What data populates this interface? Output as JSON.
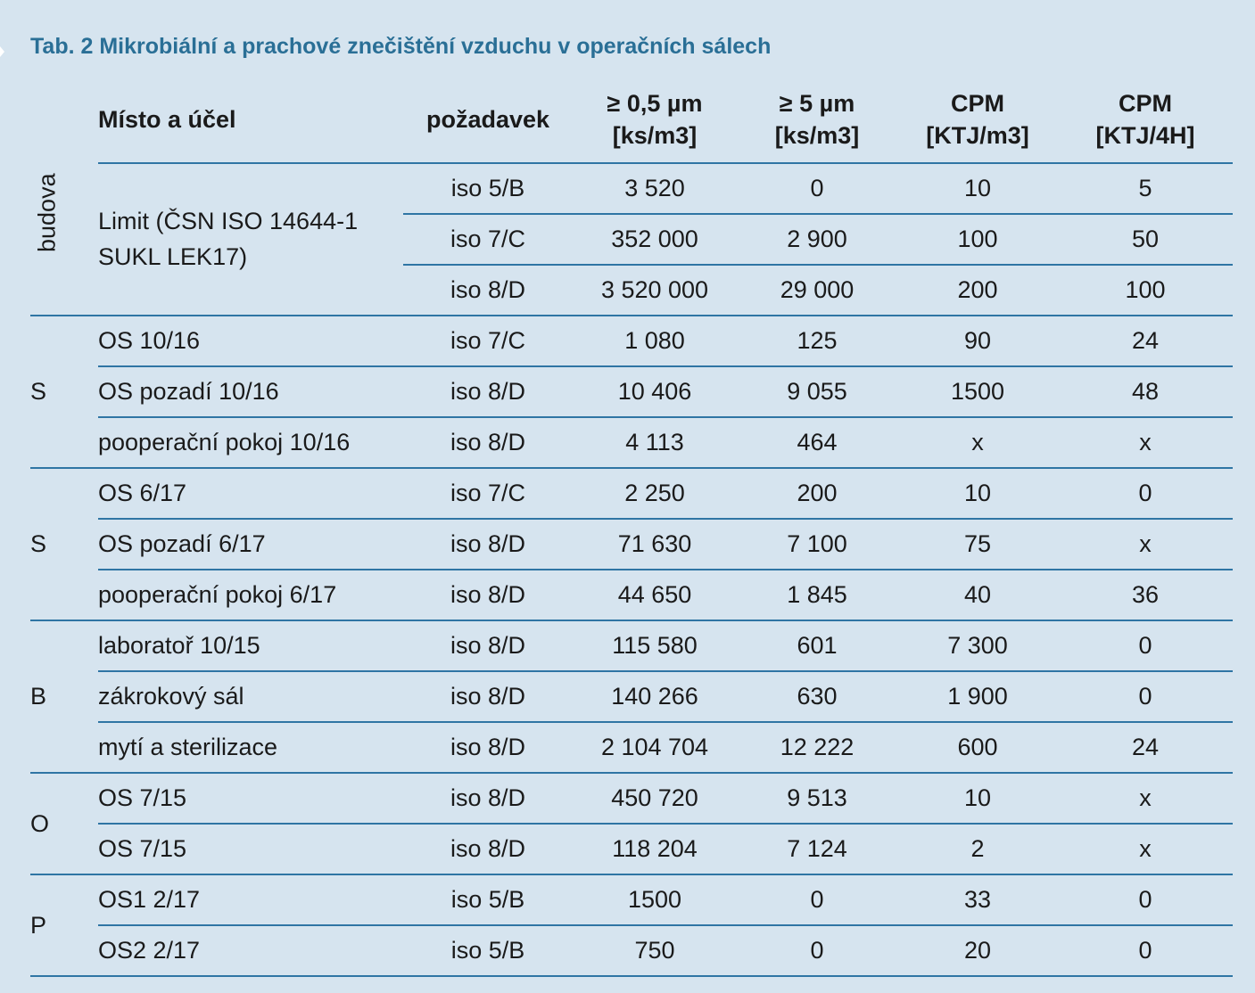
{
  "title": "Tab. 2 Mikrobiální a prachové znečištění vzduchu v operačních sálech",
  "header": {
    "location": "Místo a účel",
    "requirement": "požadavek",
    "col3_line1": "≥ 0,5 µm",
    "col3_line2": "[ks/m3]",
    "col4_line1": "≥ 5 µm",
    "col4_line2": "[ks/m3]",
    "col5_line1": "CPM",
    "col5_line2": "[KTJ/m3]",
    "col6_line1": "CPM",
    "col6_line2": "[KTJ/4H]"
  },
  "groups": {
    "g0": "budova",
    "g1": "S",
    "g2": "S",
    "g3": "B",
    "g4": "O",
    "g5": "P"
  },
  "limit": {
    "label_line1": "Limit (ČSN ISO 14644-1",
    "label_line2": "SUKL LEK17)"
  },
  "rows": [
    {
      "loc": "",
      "req": "iso 5/B",
      "v1": "3 520",
      "v2": "0",
      "v3": "10",
      "v4": "5"
    },
    {
      "loc": "",
      "req": "iso 7/C",
      "v1": "352 000",
      "v2": "2 900",
      "v3": "100",
      "v4": "50"
    },
    {
      "loc": "",
      "req": "iso 8/D",
      "v1": "3 520 000",
      "v2": "29 000",
      "v3": "200",
      "v4": "100"
    },
    {
      "loc": "OS 10/16",
      "req": "iso 7/C",
      "v1": "1 080",
      "v2": "125",
      "v3": "90",
      "v4": "24"
    },
    {
      "loc": "OS pozadí 10/16",
      "req": "iso 8/D",
      "v1": "10 406",
      "v2": "9 055",
      "v3": "1500",
      "v4": "48"
    },
    {
      "loc": "pooperační pokoj 10/16",
      "req": "iso 8/D",
      "v1": "4 113",
      "v2": "464",
      "v3": "x",
      "v4": "x"
    },
    {
      "loc": "OS 6/17",
      "req": "iso 7/C",
      "v1": "2 250",
      "v2": "200",
      "v3": "10",
      "v4": "0"
    },
    {
      "loc": "OS pozadí 6/17",
      "req": "iso 8/D",
      "v1": "71 630",
      "v2": "7 100",
      "v3": "75",
      "v4": "x"
    },
    {
      "loc": "pooperační pokoj 6/17",
      "req": "iso 8/D",
      "v1": "44 650",
      "v2": "1 845",
      "v3": "40",
      "v4": "36"
    },
    {
      "loc": "laboratoř 10/15",
      "req": "iso 8/D",
      "v1": "115 580",
      "v2": "601",
      "v3": "7 300",
      "v4": "0"
    },
    {
      "loc": "zákrokový sál",
      "req": "iso 8/D",
      "v1": "140 266",
      "v2": "630",
      "v3": "1 900",
      "v4": "0"
    },
    {
      "loc": "mytí a sterilizace",
      "req": "iso 8/D",
      "v1": "2 104 704",
      "v2": "12 222",
      "v3": "600",
      "v4": "24"
    },
    {
      "loc": "OS 7/15",
      "req": "iso 8/D",
      "v1": "450 720",
      "v2": "9 513",
      "v3": "10",
      "v4": "x"
    },
    {
      "loc": "OS 7/15",
      "req": "iso 8/D",
      "v1": "118 204",
      "v2": "7 124",
      "v3": "2",
      "v4": "x"
    },
    {
      "loc": "OS1 2/17",
      "req": "iso 5/B",
      "v1": "1500",
      "v2": "0",
      "v3": "33",
      "v4": "0"
    },
    {
      "loc": "OS2 2/17",
      "req": "iso 5/B",
      "v1": "750",
      "v2": "0",
      "v3": "20",
      "v4": "0"
    }
  ]
}
